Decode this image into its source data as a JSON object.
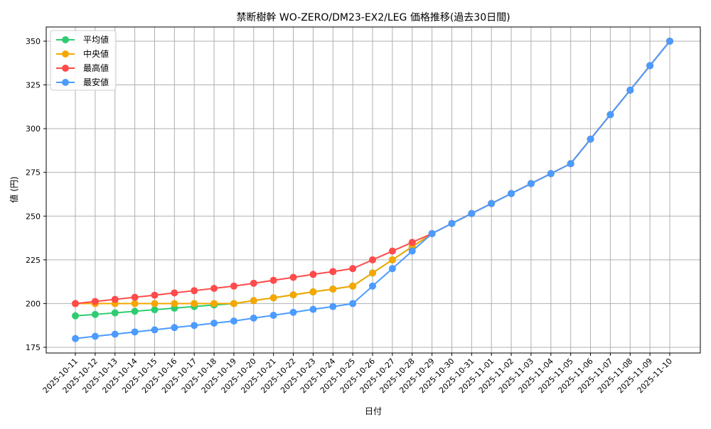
{
  "chart_data": {
    "type": "line",
    "title": "禁断樹幹 WO-ZERO/DM23-EX2/LEG 価格推移(過去30日間)",
    "xlabel": "日付",
    "ylabel": "値 (円)",
    "ylim": [
      171.75,
      358.1
    ],
    "yticks": [
      175,
      200,
      225,
      250,
      275,
      300,
      325,
      350
    ],
    "grid": true,
    "legend_position": "top-left",
    "x": [
      "2025-10-11",
      "2025-10-12",
      "2025-10-13",
      "2025-10-14",
      "2025-10-15",
      "2025-10-16",
      "2025-10-17",
      "2025-10-18",
      "2025-10-19",
      "2025-10-20",
      "2025-10-21",
      "2025-10-22",
      "2025-10-23",
      "2025-10-24",
      "2025-10-25",
      "2025-10-26",
      "2025-10-27",
      "2025-10-28",
      "2025-10-29",
      "2025-10-30",
      "2025-10-31",
      "2025-11-01",
      "2025-11-02",
      "2025-11-03",
      "2025-11-04",
      "2025-11-05",
      "2025-11-06",
      "2025-11-07",
      "2025-11-08",
      "2025-11-09",
      "2025-11-10"
    ],
    "series": [
      {
        "name": "平均値",
        "color": "#2ecc71",
        "values": [
          193,
          193.8,
          194.7,
          195.6,
          196.5,
          197.4,
          198.3,
          199.2,
          200,
          201.7,
          203.3,
          205,
          206.7,
          208.3,
          210,
          217.5,
          225,
          232.5,
          240,
          245.8,
          251.5,
          257.2,
          262.9,
          268.6,
          274.3,
          280,
          294,
          308,
          322,
          336,
          350
        ]
      },
      {
        "name": "中央値",
        "color": "#f5a700",
        "values": [
          200,
          200,
          200,
          200,
          200,
          200,
          200,
          200,
          200,
          201.7,
          203.3,
          205,
          206.7,
          208.3,
          210,
          217.5,
          225,
          232.5,
          240,
          245.8,
          251.5,
          257.2,
          262.9,
          268.6,
          274.3,
          280,
          294,
          308,
          322,
          336,
          350
        ]
      },
      {
        "name": "最高値",
        "color": "#ff4b4b",
        "values": [
          200,
          201.2,
          202.4,
          203.6,
          204.8,
          206.1,
          207.4,
          208.7,
          210,
          211.6,
          213.3,
          215,
          216.7,
          218.3,
          220,
          225,
          230,
          235,
          240,
          245.8,
          251.5,
          257.2,
          262.9,
          268.6,
          274.3,
          280,
          294,
          308,
          322,
          336,
          350
        ]
      },
      {
        "name": "最安値",
        "color": "#4c9bff",
        "values": [
          180,
          181.3,
          182.5,
          183.8,
          185,
          186.3,
          187.5,
          188.8,
          190,
          191.7,
          193.3,
          195,
          196.7,
          198.3,
          200,
          210,
          220,
          230,
          240,
          245.8,
          251.5,
          257.2,
          262.9,
          268.6,
          274.3,
          280,
          294,
          308,
          322,
          336,
          350
        ]
      }
    ]
  }
}
